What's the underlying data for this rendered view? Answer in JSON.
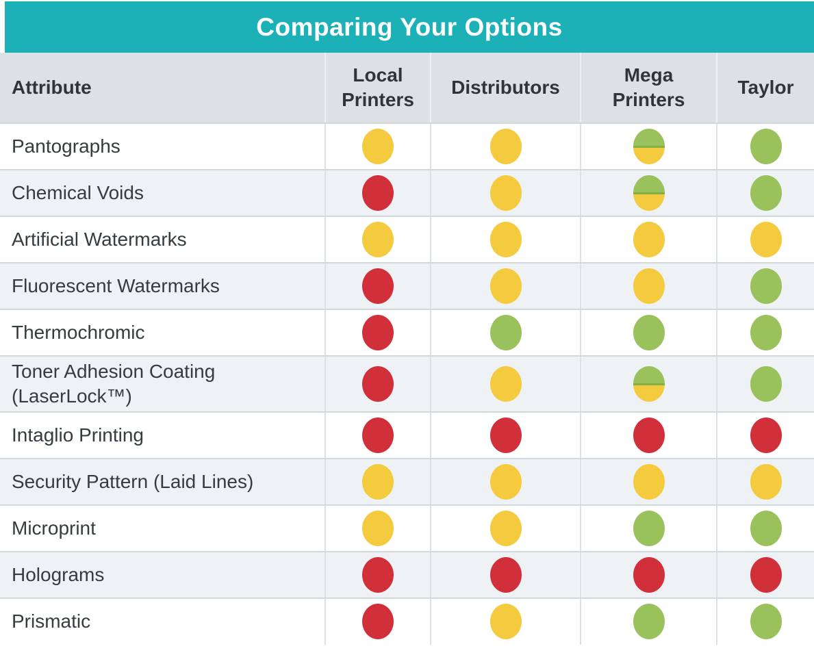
{
  "title": "Comparing Your Options",
  "colors": {
    "header_teal": "#1CB1B7",
    "header_row_bg": "#DDE1E4",
    "alt_row_bg": "#EEF2F5",
    "rating_red": "#D12F3A",
    "rating_yellow": "#F4CA3E",
    "rating_green": "#99C15C"
  },
  "columns": [
    {
      "label": "Attribute"
    },
    {
      "label": "Local Printers"
    },
    {
      "label": "Distributors"
    },
    {
      "label": "Mega Printers"
    },
    {
      "label": "Taylor"
    }
  ],
  "rating_legend": {
    "red": "red-dot",
    "yellow": "yellow-dot",
    "green": "green-dot",
    "green-yellow": "half-green-half-yellow-dot"
  },
  "rows": [
    {
      "attribute": "Pantographs",
      "ratings": [
        "yellow",
        "yellow",
        "green-yellow",
        "green"
      ]
    },
    {
      "attribute": "Chemical Voids",
      "ratings": [
        "red",
        "yellow",
        "green-yellow",
        "green"
      ]
    },
    {
      "attribute": "Artificial Watermarks",
      "ratings": [
        "yellow",
        "yellow",
        "yellow",
        "yellow"
      ]
    },
    {
      "attribute": "Fluorescent Watermarks",
      "ratings": [
        "red",
        "yellow",
        "yellow",
        "green"
      ]
    },
    {
      "attribute": "Thermochromic",
      "ratings": [
        "red",
        "green",
        "green",
        "green"
      ]
    },
    {
      "attribute": "Toner Adhesion Coating (LaserLock™)",
      "ratings": [
        "red",
        "yellow",
        "green-yellow",
        "green"
      ]
    },
    {
      "attribute": "Intaglio Printing",
      "ratings": [
        "red",
        "red",
        "red",
        "red"
      ]
    },
    {
      "attribute": "Security Pattern (Laid Lines)",
      "ratings": [
        "yellow",
        "yellow",
        "yellow",
        "yellow"
      ]
    },
    {
      "attribute": "Microprint",
      "ratings": [
        "yellow",
        "yellow",
        "green",
        "green"
      ]
    },
    {
      "attribute": "Holograms",
      "ratings": [
        "red",
        "red",
        "red",
        "red"
      ]
    },
    {
      "attribute": "Prismatic",
      "ratings": [
        "red",
        "yellow",
        "green",
        "green"
      ]
    }
  ]
}
